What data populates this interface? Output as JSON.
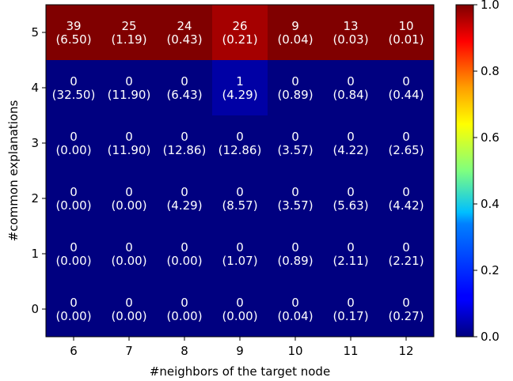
{
  "chart_data": {
    "type": "heatmap",
    "xlabel": "#neighbors of the target node",
    "ylabel": "#common explanations",
    "x_categories": [
      "6",
      "7",
      "8",
      "9",
      "10",
      "11",
      "12"
    ],
    "y_categories": [
      "0",
      "1",
      "2",
      "3",
      "4",
      "5"
    ],
    "colormap": "jet",
    "color_range": [
      0.0,
      1.0
    ],
    "colorbar_ticks": [
      "0.0",
      "0.2",
      "0.4",
      "0.6",
      "0.8",
      "1.0"
    ],
    "rows": [
      {
        "y": "5",
        "counts": [
          39,
          25,
          24,
          26,
          9,
          13,
          10
        ],
        "expected": [
          "(6.50)",
          "(1.19)",
          "(0.43)",
          "(0.21)",
          "(0.04)",
          "(0.03)",
          "(0.01)"
        ],
        "color_values": [
          1.0,
          1.0,
          1.0,
          0.963,
          1.0,
          1.0,
          1.0
        ]
      },
      {
        "y": "4",
        "counts": [
          0,
          0,
          0,
          1,
          0,
          0,
          0
        ],
        "expected": [
          "(32.50)",
          "(11.90)",
          "(6.43)",
          "(4.29)",
          "(0.89)",
          "(0.84)",
          "(0.44)"
        ],
        "color_values": [
          0.0,
          0.0,
          0.0,
          0.037,
          0.0,
          0.0,
          0.0
        ]
      },
      {
        "y": "3",
        "counts": [
          0,
          0,
          0,
          0,
          0,
          0,
          0
        ],
        "expected": [
          "(0.00)",
          "(11.90)",
          "(12.86)",
          "(12.86)",
          "(3.57)",
          "(4.22)",
          "(2.65)"
        ],
        "color_values": [
          0,
          0,
          0,
          0,
          0,
          0,
          0
        ]
      },
      {
        "y": "2",
        "counts": [
          0,
          0,
          0,
          0,
          0,
          0,
          0
        ],
        "expected": [
          "(0.00)",
          "(0.00)",
          "(4.29)",
          "(8.57)",
          "(3.57)",
          "(5.63)",
          "(4.42)"
        ],
        "color_values": [
          0,
          0,
          0,
          0,
          0,
          0,
          0
        ]
      },
      {
        "y": "1",
        "counts": [
          0,
          0,
          0,
          0,
          0,
          0,
          0
        ],
        "expected": [
          "(0.00)",
          "(0.00)",
          "(0.00)",
          "(1.07)",
          "(0.89)",
          "(2.11)",
          "(2.21)"
        ],
        "color_values": [
          0,
          0,
          0,
          0,
          0,
          0,
          0
        ]
      },
      {
        "y": "0",
        "counts": [
          0,
          0,
          0,
          0,
          0,
          0,
          0
        ],
        "expected": [
          "(0.00)",
          "(0.00)",
          "(0.00)",
          "(0.00)",
          "(0.04)",
          "(0.17)",
          "(0.27)"
        ],
        "color_values": [
          0,
          0,
          0,
          0,
          0,
          0,
          0
        ]
      }
    ]
  }
}
